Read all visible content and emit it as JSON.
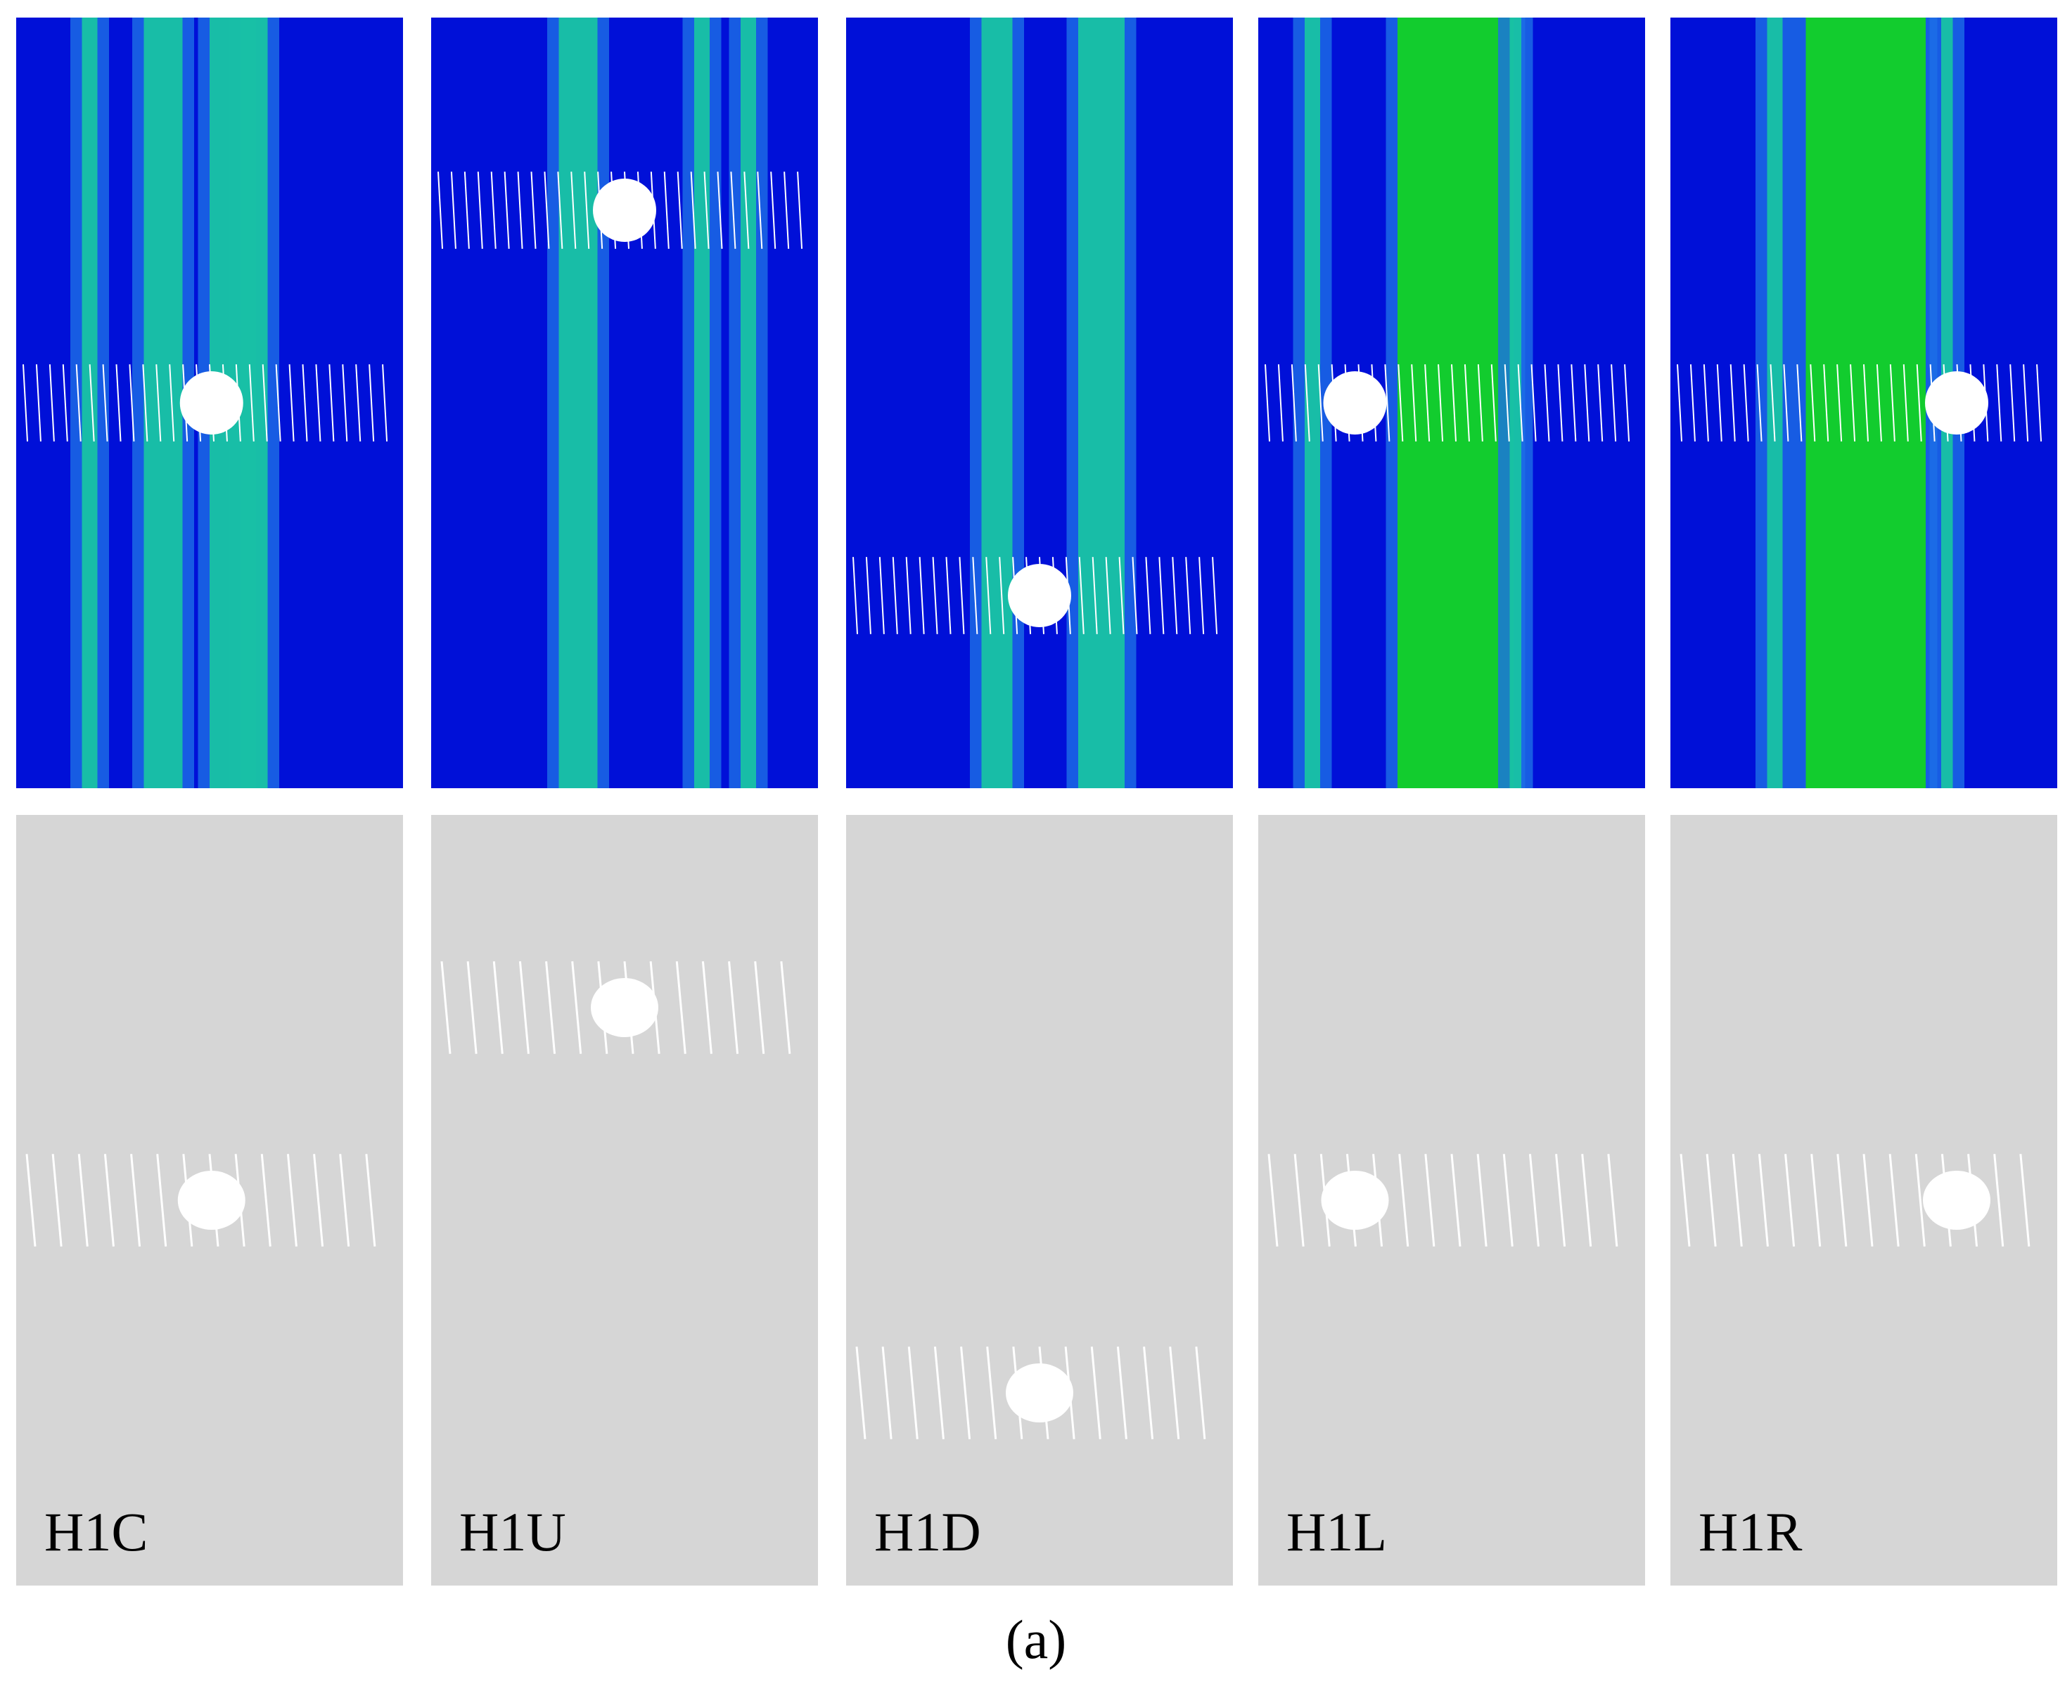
{
  "panels": [
    {
      "label": "H1C"
    },
    {
      "label": "H1U"
    },
    {
      "label": "H1D"
    },
    {
      "label": "H1L"
    },
    {
      "label": "H1R"
    }
  ],
  "caption": "(a)"
}
